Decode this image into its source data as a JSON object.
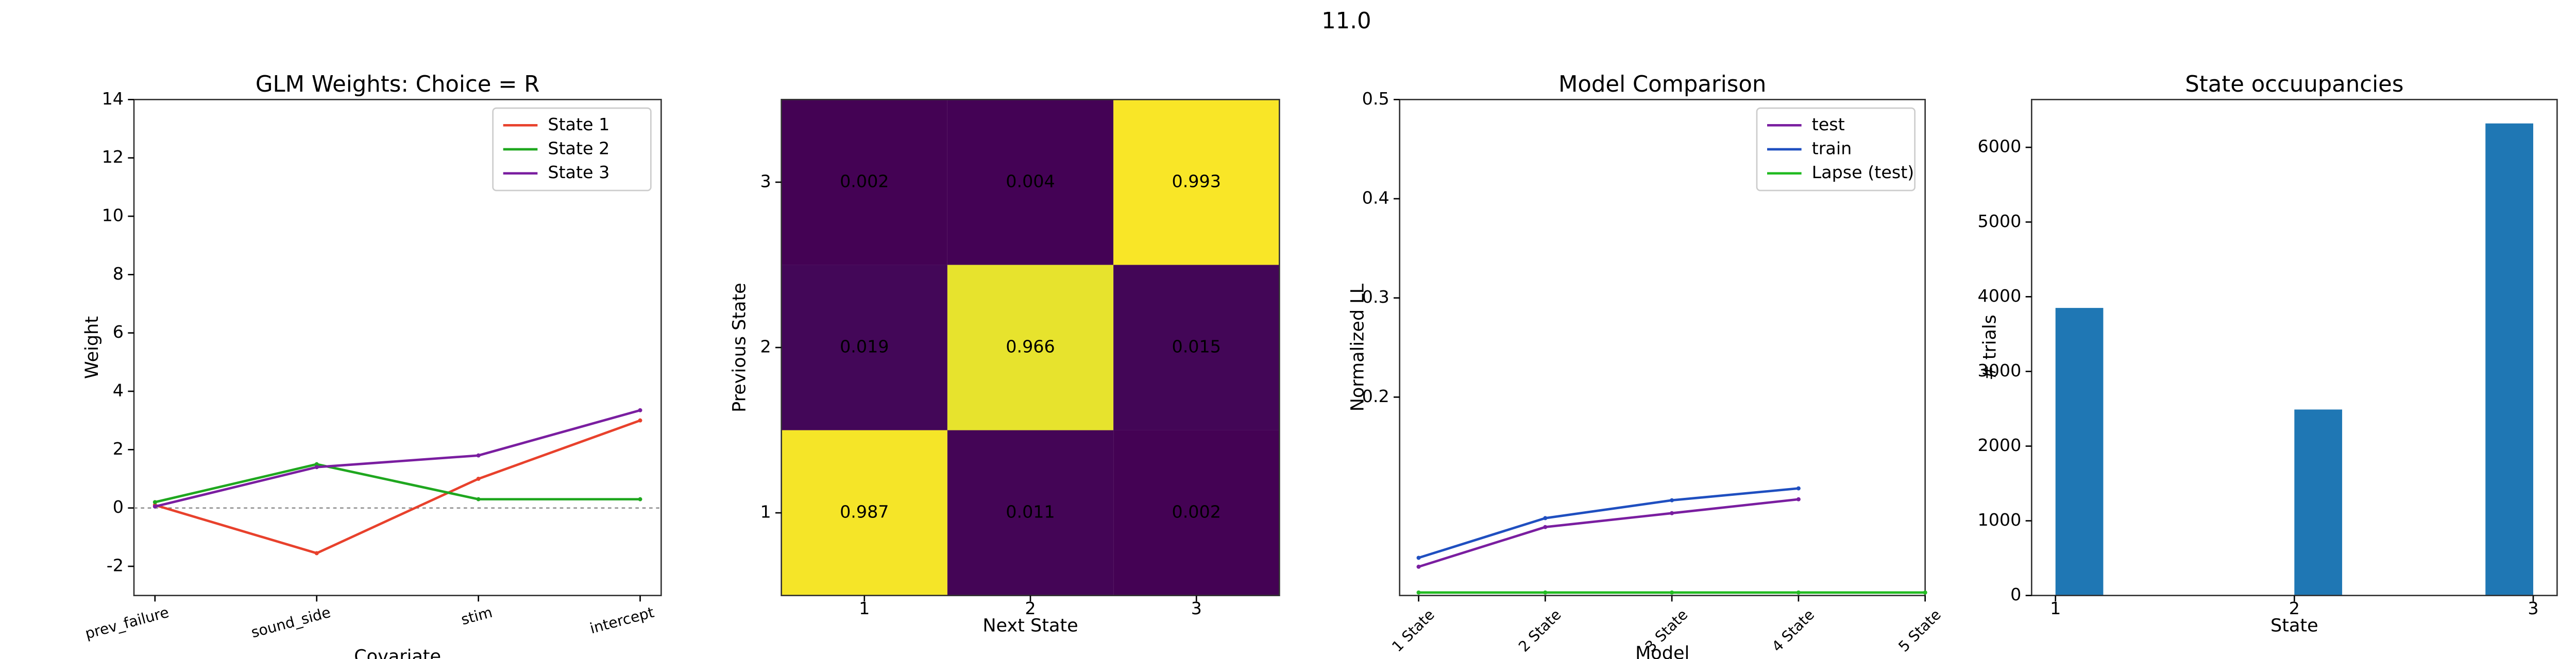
{
  "suptitle": "11.0",
  "chart_data": [
    {
      "type": "line",
      "title": "GLM Weights: Choice = R",
      "x_label": "Covariate",
      "y_label": "Weight",
      "categories": [
        "prev_failure",
        "sound_side",
        "stim",
        "intercept"
      ],
      "ylim": [
        -3,
        14
      ],
      "yticks": [
        -2,
        0,
        2,
        4,
        6,
        8,
        10,
        12,
        14
      ],
      "zero_line": true,
      "legend": "upper right",
      "series": [
        {
          "name": "State 1",
          "color": "#e8412c",
          "values": [
            0.1,
            -1.55,
            1.0,
            3.0
          ]
        },
        {
          "name": "State 2",
          "color": "#1fa71f",
          "values": [
            0.2,
            1.5,
            0.3,
            0.3
          ]
        },
        {
          "name": "State 3",
          "color": "#7a1ea0",
          "values": [
            0.05,
            1.4,
            1.8,
            3.35
          ]
        }
      ]
    },
    {
      "type": "heatmap",
      "x_label": "Next State",
      "y_label": "Previous State",
      "colormap": "viridis",
      "clim": [
        0,
        1
      ],
      "columns": [
        1,
        2,
        3
      ],
      "rows": [
        1,
        2,
        3
      ],
      "values": [
        [
          0.987,
          0.011,
          0.002
        ],
        [
          0.019,
          0.966,
          0.015
        ],
        [
          0.002,
          0.004,
          0.993
        ]
      ]
    },
    {
      "type": "line",
      "title": "Model Comparison",
      "x_label": "Model",
      "y_label": "Normalized LL",
      "categories": [
        "1 State",
        "2 State",
        "3 State",
        "4 State",
        "5 State"
      ],
      "ylim": [
        0,
        0.5
      ],
      "yticks": [
        0.2,
        0.3,
        0.4,
        0.5
      ],
      "legend": "upper right",
      "series": [
        {
          "name": "test",
          "color": "#7a1ea0",
          "values": [
            0.029,
            0.069,
            0.083,
            0.097,
            null
          ]
        },
        {
          "name": "train",
          "color": "#1f4fc0",
          "values": [
            0.038,
            0.078,
            0.096,
            0.108,
            null
          ]
        },
        {
          "name": "Lapse (test)",
          "color": "#22bb22",
          "values": [
            0.003,
            0.003,
            0.003,
            0.003,
            0.003
          ]
        }
      ]
    },
    {
      "type": "histogram",
      "title": "State occuupancies",
      "x_label": "State",
      "y_label": "# trials",
      "color": "#1f77b4",
      "bins": [
        1.0,
        1.2,
        1.4,
        1.6,
        1.8,
        2.0,
        2.2,
        2.4,
        2.6,
        2.8,
        3.0
      ],
      "values": [
        3850,
        0,
        0,
        0,
        0,
        2490,
        0,
        0,
        0,
        6320
      ],
      "xlim": [
        0.9,
        3.1
      ],
      "xticks": [
        1,
        2,
        3
      ],
      "ylim": [
        0,
        6640
      ],
      "yticks": [
        0,
        1000,
        2000,
        3000,
        4000,
        5000,
        6000
      ]
    }
  ]
}
